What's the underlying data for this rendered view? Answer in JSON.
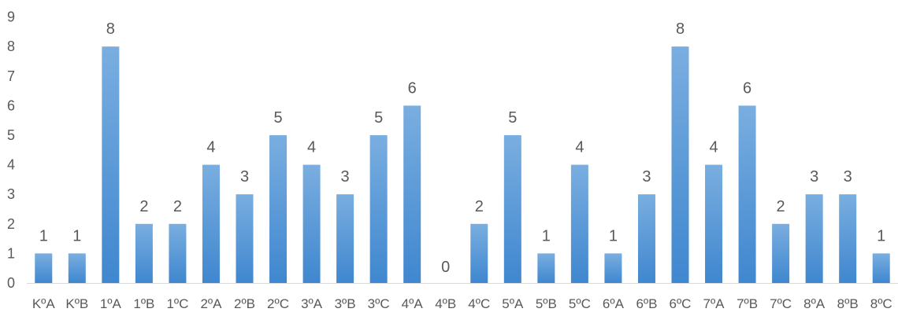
{
  "chart_data": {
    "type": "bar",
    "title": "",
    "xlabel": "",
    "ylabel": "",
    "ylim": [
      0,
      9
    ],
    "yticks": [
      0,
      1,
      2,
      3,
      4,
      5,
      6,
      7,
      8,
      9
    ],
    "grid": false,
    "legend": "none",
    "categories": [
      "KºA",
      "KºB",
      "1ºA",
      "1ºB",
      "1ºC",
      "2ºA",
      "2ºB",
      "2ºC",
      "3ºA",
      "3ºB",
      "3ºC",
      "4ºA",
      "4ºB",
      "4ºC",
      "5ºA",
      "5ºB",
      "5ºC",
      "6ºA",
      "6ºB",
      "6ºC",
      "7ºA",
      "7ºB",
      "7ºC",
      "8ºA",
      "8ºB",
      "8ºC"
    ],
    "values": [
      1,
      1,
      8,
      2,
      2,
      4,
      3,
      5,
      4,
      3,
      5,
      6,
      0,
      2,
      5,
      1,
      4,
      1,
      3,
      8,
      4,
      6,
      2,
      3,
      3,
      1
    ],
    "data_labels": [
      "1",
      "1",
      "8",
      "2",
      "2",
      "4",
      "3",
      "5",
      "4",
      "3",
      "5",
      "6",
      "0",
      "2",
      "5",
      "1",
      "4",
      "1",
      "3",
      "8",
      "4",
      "6",
      "2",
      "3",
      "3",
      "1"
    ],
    "colors": {
      "bar_top": "#7aaee0",
      "bar_bottom": "#3f87cf",
      "axis": "#d9d9d9",
      "text": "#595959"
    }
  }
}
